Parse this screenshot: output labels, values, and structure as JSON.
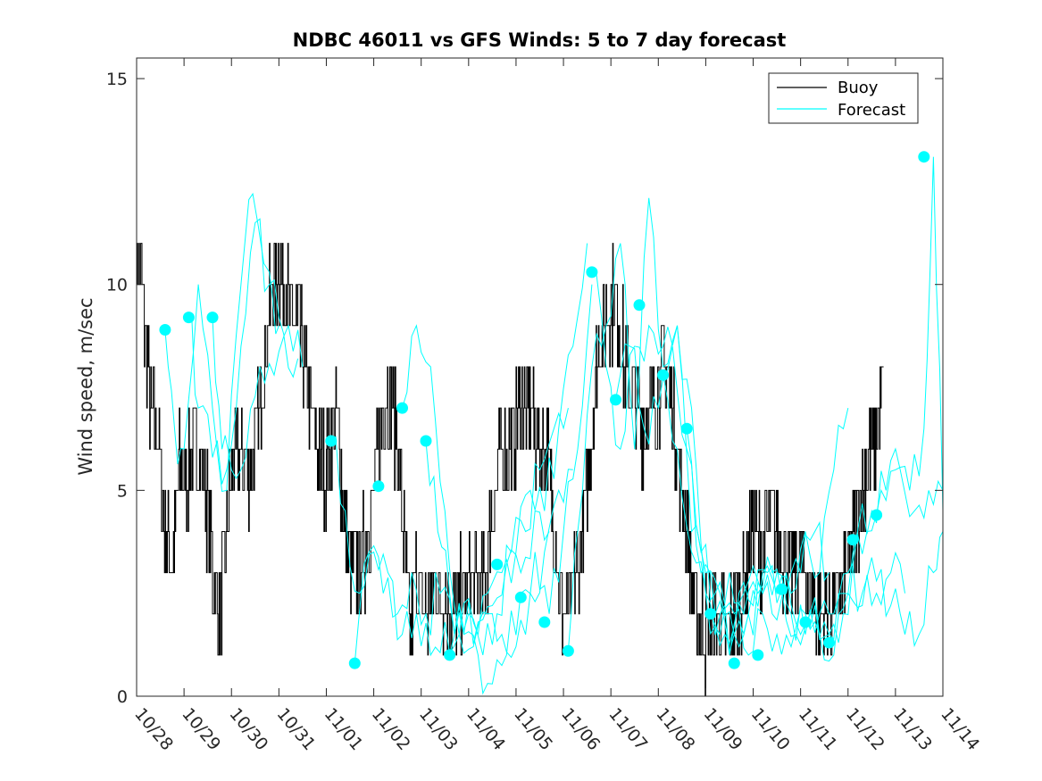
{
  "chart_data": {
    "type": "line",
    "title": "NDBC 46011 vs GFS Winds: 5 to 7 day forecast",
    "xlabel": "",
    "ylabel": "Wind speed, m/sec",
    "xlim": [
      0,
      17
    ],
    "ylim": [
      0,
      15.5
    ],
    "grid": false,
    "legend_position": "top-right",
    "x_ticks": [
      0,
      1,
      2,
      3,
      4,
      5,
      6,
      7,
      8,
      9,
      10,
      11,
      12,
      13,
      14,
      15,
      16,
      17
    ],
    "x_tick_labels": [
      "10/28",
      "10/29",
      "10/30",
      "10/31",
      "11/01",
      "11/02",
      "11/03",
      "11/04",
      "11/05",
      "11/06",
      "11/07",
      "11/08",
      "11/09",
      "11/10",
      "11/11",
      "11/12",
      "11/13",
      "11/14"
    ],
    "y_ticks": [
      0,
      5,
      10,
      15
    ],
    "y_tick_labels": [
      "0",
      "5",
      "10",
      "15"
    ],
    "legend": [
      "Buoy",
      "Forecast"
    ],
    "colors": {
      "buoy": "#000000",
      "forecast": "#00ffff",
      "axis": "#262626"
    },
    "buoy_anchors": [
      [
        0,
        11
      ],
      [
        0.1,
        10
      ],
      [
        0.3,
        7
      ],
      [
        0.45,
        6.5
      ],
      [
        0.6,
        4
      ],
      [
        0.75,
        3
      ],
      [
        0.9,
        5.5
      ],
      [
        1.1,
        5.5
      ],
      [
        1.3,
        6
      ],
      [
        1.5,
        4.5
      ],
      [
        1.6,
        3
      ],
      [
        1.75,
        2
      ],
      [
        1.9,
        4
      ],
      [
        2.05,
        6
      ],
      [
        2.25,
        5.5
      ],
      [
        2.4,
        5.5
      ],
      [
        2.6,
        7
      ],
      [
        2.8,
        9.5
      ],
      [
        3.0,
        10.5
      ],
      [
        3.2,
        9.5
      ],
      [
        3.4,
        9
      ],
      [
        3.6,
        7.5
      ],
      [
        3.8,
        6
      ],
      [
        4.0,
        5.5
      ],
      [
        4.2,
        7
      ],
      [
        4.4,
        4
      ],
      [
        4.6,
        3
      ],
      [
        4.8,
        3.5
      ],
      [
        5.0,
        5
      ],
      [
        5.2,
        7
      ],
      [
        5.35,
        7.5
      ],
      [
        5.5,
        6
      ],
      [
        5.6,
        4.5
      ],
      [
        5.75,
        1.5
      ],
      [
        5.9,
        3
      ],
      [
        6.1,
        2
      ],
      [
        6.3,
        2.5
      ],
      [
        6.5,
        2.5
      ],
      [
        6.7,
        2
      ],
      [
        6.9,
        2.5
      ],
      [
        7.1,
        3
      ],
      [
        7.3,
        2.5
      ],
      [
        7.5,
        4.5
      ],
      [
        7.7,
        6
      ],
      [
        7.9,
        6
      ],
      [
        8.1,
        7
      ],
      [
        8.3,
        7
      ],
      [
        8.5,
        6
      ],
      [
        8.65,
        6
      ],
      [
        8.8,
        4
      ],
      [
        9.0,
        2
      ],
      [
        9.1,
        2
      ],
      [
        9.3,
        3
      ],
      [
        9.5,
        5
      ],
      [
        9.7,
        8
      ],
      [
        9.9,
        9.5
      ],
      [
        10.1,
        9.5
      ],
      [
        10.3,
        8
      ],
      [
        10.5,
        7
      ],
      [
        10.7,
        6.5
      ],
      [
        10.9,
        7
      ],
      [
        11.1,
        8
      ],
      [
        11.3,
        7
      ],
      [
        11.4,
        6
      ],
      [
        11.6,
        4
      ],
      [
        11.8,
        2
      ],
      [
        12.0,
        1.5
      ],
      [
        12.2,
        2
      ],
      [
        12.4,
        1.5
      ],
      [
        12.6,
        2
      ],
      [
        12.8,
        2.5
      ],
      [
        13.0,
        4
      ],
      [
        13.2,
        3.5
      ],
      [
        13.4,
        4.5
      ],
      [
        13.6,
        3.5
      ],
      [
        13.8,
        3
      ],
      [
        14.0,
        3.5
      ],
      [
        14.2,
        2.5
      ],
      [
        14.4,
        2
      ],
      [
        14.6,
        2
      ],
      [
        14.8,
        2.5
      ],
      [
        15.0,
        3
      ],
      [
        15.2,
        4.5
      ],
      [
        15.4,
        5.5
      ],
      [
        15.6,
        6.5
      ],
      [
        15.75,
        7.5
      ]
    ],
    "forecast_dots": [
      [
        0.6,
        8.9
      ],
      [
        1.1,
        9.2
      ],
      [
        1.6,
        9.2
      ],
      [
        4.1,
        6.2
      ],
      [
        4.6,
        0.8
      ],
      [
        5.1,
        5.1
      ],
      [
        5.6,
        7.0
      ],
      [
        6.1,
        6.2
      ],
      [
        6.6,
        1.0
      ],
      [
        7.6,
        3.2
      ],
      [
        8.1,
        2.4
      ],
      [
        8.6,
        1.8
      ],
      [
        9.1,
        1.1
      ],
      [
        9.6,
        10.3
      ],
      [
        10.1,
        7.2
      ],
      [
        10.6,
        9.5
      ],
      [
        11.1,
        7.8
      ],
      [
        11.6,
        6.5
      ],
      [
        12.1,
        2.0
      ],
      [
        12.6,
        0.8
      ],
      [
        13.1,
        1.0
      ],
      [
        13.6,
        2.6
      ],
      [
        14.1,
        1.8
      ],
      [
        14.6,
        1.3
      ],
      [
        15.1,
        3.8
      ],
      [
        15.6,
        4.4
      ],
      [
        16.6,
        13.1
      ]
    ],
    "forecast_anchors": [
      [
        [
          1.6,
          9.2
        ],
        [
          1.8,
          6.0
        ],
        [
          2.0,
          5.5
        ],
        [
          2.3,
          5.8
        ],
        [
          2.6,
          8.0
        ],
        [
          2.9,
          7.8
        ],
        [
          3.2,
          9.0
        ],
        [
          3.5,
          8.0
        ]
      ],
      [
        [
          1.1,
          9.2
        ],
        [
          1.3,
          7.0
        ],
        [
          1.6,
          5.8
        ],
        [
          1.9,
          5.5
        ],
        [
          2.2,
          8.5
        ],
        [
          2.5,
          11.5
        ],
        [
          2.8,
          10.0
        ],
        [
          3.1,
          8.8
        ],
        [
          3.4,
          8.2
        ]
      ],
      [
        [
          0.6,
          8.9
        ],
        [
          0.8,
          6.5
        ],
        [
          1.0,
          6.0
        ],
        [
          1.3,
          10.0
        ],
        [
          1.6,
          7.0
        ],
        [
          1.9,
          5.0
        ],
        [
          2.2,
          10.0
        ],
        [
          2.45,
          12.2
        ],
        [
          2.8,
          10.3
        ],
        [
          3.0,
          9.0
        ]
      ],
      [
        [
          6.6,
          1.0
        ],
        [
          6.9,
          1.5
        ],
        [
          7.2,
          1.8
        ],
        [
          7.5,
          2.2
        ],
        [
          7.8,
          3.2
        ],
        [
          8.1,
          3.0
        ],
        [
          8.4,
          4.5
        ],
        [
          8.7,
          4.0
        ]
      ],
      [
        [
          6.1,
          6.2
        ],
        [
          6.35,
          4.0
        ],
        [
          6.6,
          2.5
        ],
        [
          6.9,
          1.5
        ],
        [
          7.2,
          1.0
        ],
        [
          7.5,
          0.3
        ],
        [
          7.8,
          1.0
        ],
        [
          8.1,
          2.5
        ],
        [
          8.4,
          3.5
        ],
        [
          8.7,
          2.0
        ],
        [
          9.0,
          4.0
        ],
        [
          9.3,
          6.0
        ],
        [
          9.6,
          10.0
        ]
      ],
      [
        [
          5.6,
          7.0
        ],
        [
          5.9,
          9.0
        ],
        [
          6.2,
          8.0
        ],
        [
          6.5,
          4.5
        ],
        [
          6.8,
          1.5
        ],
        [
          7.1,
          1.8
        ],
        [
          7.4,
          2.5
        ],
        [
          7.7,
          3.0
        ],
        [
          8.0,
          3.5
        ],
        [
          8.3,
          5.0
        ],
        [
          8.6,
          4.5
        ],
        [
          8.9,
          6.5
        ],
        [
          9.2,
          8.5
        ],
        [
          9.5,
          11.0
        ]
      ],
      [
        [
          4.6,
          0.8
        ],
        [
          4.9,
          3.5
        ],
        [
          5.2,
          2.5
        ],
        [
          5.5,
          2.0
        ],
        [
          5.8,
          3.0
        ],
        [
          6.1,
          2.0
        ],
        [
          6.4,
          2.5
        ],
        [
          6.7,
          1.5
        ],
        [
          7.0,
          2.0
        ],
        [
          7.3,
          1.0
        ],
        [
          7.6,
          2.0
        ],
        [
          7.9,
          3.5
        ],
        [
          8.2,
          4.0
        ],
        [
          8.5,
          5.5
        ],
        [
          8.8,
          6.5
        ],
        [
          9.1,
          7.0
        ]
      ],
      [
        [
          4.1,
          6.2
        ],
        [
          4.4,
          4.5
        ],
        [
          4.7,
          2.5
        ],
        [
          5.0,
          3.5
        ],
        [
          5.3,
          3.0
        ],
        [
          5.6,
          1.5
        ],
        [
          5.9,
          2.0
        ],
        [
          6.2,
          1.0
        ],
        [
          6.5,
          1.8
        ],
        [
          6.8,
          1.5
        ],
        [
          7.1,
          1.2
        ],
        [
          7.4,
          2.0
        ],
        [
          7.7,
          1.5
        ],
        [
          8.0,
          1.2
        ],
        [
          8.3,
          2.5
        ],
        [
          8.6,
          3.5
        ],
        [
          8.9,
          5.0
        ],
        [
          9.2,
          5.5
        ]
      ],
      [
        [
          12.1,
          2.0
        ],
        [
          12.4,
          1.5
        ],
        [
          12.7,
          2.5
        ],
        [
          13.0,
          2.2
        ],
        [
          13.3,
          3.0
        ],
        [
          13.6,
          2.6
        ],
        [
          13.9,
          1.5
        ],
        [
          14.2,
          2.0
        ],
        [
          14.5,
          1.8
        ],
        [
          14.8,
          1.3
        ],
        [
          15.1,
          3.2
        ],
        [
          15.4,
          4.0
        ],
        [
          15.7,
          5.0
        ],
        [
          16.0,
          5.5
        ],
        [
          16.3,
          5.0
        ],
        [
          16.6,
          6.5
        ],
        [
          16.8,
          13.1
        ],
        [
          17.0,
          4.5
        ]
      ],
      [
        [
          11.6,
          6.5
        ],
        [
          11.9,
          3.0
        ],
        [
          12.2,
          2.0
        ],
        [
          12.5,
          1.0
        ],
        [
          12.8,
          2.5
        ],
        [
          13.1,
          2.8
        ],
        [
          13.4,
          2.0
        ],
        [
          13.7,
          3.0
        ],
        [
          14.0,
          1.5
        ],
        [
          14.3,
          2.2
        ],
        [
          14.6,
          1.5
        ],
        [
          14.9,
          2.5
        ],
        [
          15.2,
          4.0
        ],
        [
          15.5,
          4.5
        ],
        [
          15.8,
          5.0
        ],
        [
          16.1,
          5.5
        ],
        [
          16.4,
          4.5
        ],
        [
          16.7,
          5.0
        ],
        [
          17.0,
          5.0
        ]
      ],
      [
        [
          11.1,
          7.8
        ],
        [
          11.4,
          6.0
        ],
        [
          11.7,
          3.5
        ],
        [
          12.0,
          2.5
        ],
        [
          12.3,
          2.0
        ],
        [
          12.6,
          1.5
        ],
        [
          12.9,
          2.0
        ],
        [
          13.2,
          2.5
        ],
        [
          13.5,
          3.0
        ],
        [
          13.8,
          2.0
        ],
        [
          14.1,
          1.5
        ],
        [
          14.4,
          2.0
        ],
        [
          14.7,
          2.0
        ],
        [
          15.0,
          3.0
        ],
        [
          15.3,
          2.5
        ],
        [
          15.6,
          2.8
        ],
        [
          15.9,
          2.2
        ],
        [
          16.2,
          1.5
        ],
        [
          16.5,
          1.5
        ],
        [
          16.8,
          3.0
        ],
        [
          17.0,
          4.0
        ]
      ],
      [
        [
          9.6,
          10.3
        ],
        [
          9.9,
          8.0
        ],
        [
          10.2,
          6.0
        ],
        [
          10.5,
          8.5
        ],
        [
          10.8,
          9.0
        ],
        [
          11.1,
          8.5
        ],
        [
          11.4,
          9.0
        ],
        [
          11.7,
          7.0
        ],
        [
          12.0,
          2.5
        ],
        [
          12.3,
          1.5
        ],
        [
          12.6,
          2.0
        ],
        [
          12.9,
          1.0
        ],
        [
          13.2,
          2.0
        ],
        [
          13.5,
          1.5
        ],
        [
          13.8,
          1.2
        ],
        [
          14.1,
          2.0
        ],
        [
          14.4,
          1.5
        ],
        [
          14.7,
          1.0
        ],
        [
          15.0,
          2.5
        ],
        [
          15.3,
          2.2
        ],
        [
          15.6,
          2.5
        ],
        [
          15.9,
          3.0
        ],
        [
          16.2,
          2.5
        ]
      ],
      [
        [
          9.1,
          1.1
        ],
        [
          9.3,
          4.0
        ],
        [
          9.6,
          8.0
        ],
        [
          9.9,
          9.0
        ],
        [
          10.2,
          11.0
        ],
        [
          10.5,
          6.0
        ],
        [
          10.8,
          12.1
        ],
        [
          11.1,
          8.0
        ],
        [
          11.4,
          9.0
        ],
        [
          11.7,
          4.0
        ],
        [
          12.0,
          3.0
        ],
        [
          12.3,
          2.5
        ],
        [
          12.6,
          1.5
        ],
        [
          12.9,
          2.0
        ],
        [
          13.2,
          3.0
        ],
        [
          13.5,
          2.5
        ],
        [
          13.8,
          2.5
        ],
        [
          14.1,
          4.0
        ],
        [
          14.4,
          3.0
        ],
        [
          14.7,
          5.5
        ],
        [
          15.0,
          7.0
        ]
      ],
      [
        [
          10.1,
          7.2
        ],
        [
          10.4,
          8.5
        ],
        [
          10.7,
          6.5
        ],
        [
          11.0,
          7.0
        ],
        [
          11.3,
          8.5
        ],
        [
          11.6,
          6.0
        ],
        [
          11.9,
          3.5
        ],
        [
          12.2,
          2.5
        ],
        [
          12.5,
          3.0
        ],
        [
          12.8,
          2.0
        ],
        [
          13.1,
          2.5
        ],
        [
          13.4,
          3.0
        ],
        [
          13.7,
          2.5
        ],
        [
          14.0,
          3.0
        ],
        [
          14.3,
          4.0
        ],
        [
          14.6,
          3.0
        ]
      ]
    ]
  }
}
